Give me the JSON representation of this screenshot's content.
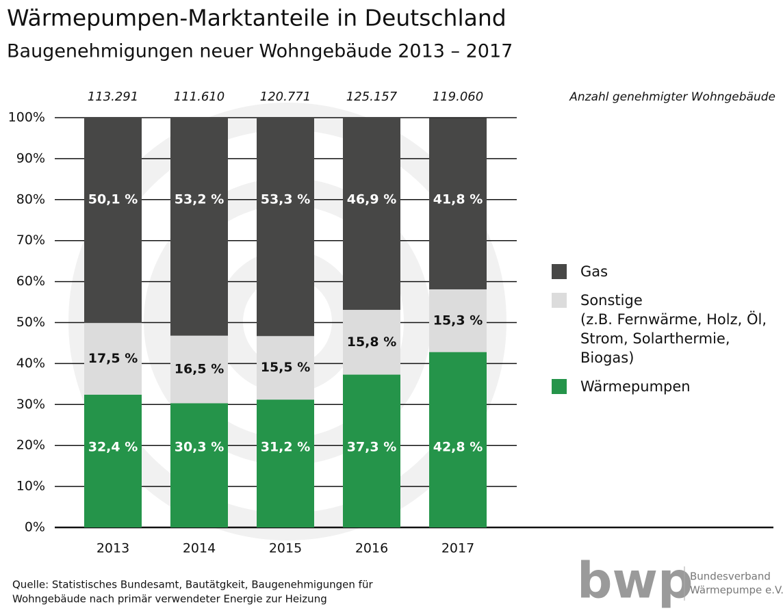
{
  "chart_data": {
    "type": "stacked_bar",
    "title": "Wärmepumpen-Marktanteile in Deutschland",
    "subtitle": "Baugenehmigungen neuer Wohngebäude 2013 – 2017",
    "categories": [
      "2013",
      "2014",
      "2015",
      "2016",
      "2017"
    ],
    "series": [
      {
        "name": "Wärmepumpen",
        "color": "#25944a",
        "values": [
          32.4,
          30.3,
          31.2,
          37.3,
          42.8
        ],
        "value_labels": [
          "32,4 %",
          "30,3 %",
          "31,2 %",
          "37,3 %",
          "42,8 %"
        ]
      },
      {
        "name": "Sonstige",
        "description": "(z.B. Fernwärme, Holz, Öl, Strom, Solarthermie, Biogas)",
        "color": "#dcdcdc",
        "values": [
          17.5,
          16.5,
          15.5,
          15.8,
          15.3
        ],
        "value_labels": [
          "17,5 %",
          "16,5 %",
          "15,5 %",
          "15,8 %",
          "15,3 %"
        ]
      },
      {
        "name": "Gas",
        "color": "#474746",
        "values": [
          50.1,
          53.2,
          53.3,
          46.9,
          41.8
        ],
        "value_labels": [
          "50,1 %",
          "53,2 %",
          "53,3 %",
          "46,9 %",
          "41,8 %"
        ]
      }
    ],
    "counts_label": "Anzahl genehmigter Wohngebäude",
    "counts": [
      113291,
      111610,
      120771,
      125157,
      119060
    ],
    "count_labels": [
      "113.291",
      "111.610",
      "120.771",
      "125.157",
      "119.060"
    ],
    "ylim": [
      0,
      100
    ],
    "yticks": [
      {
        "value": 0,
        "label": "0%"
      },
      {
        "value": 10,
        "label": "10%"
      },
      {
        "value": 20,
        "label": "20%"
      },
      {
        "value": 30,
        "label": "30%"
      },
      {
        "value": 40,
        "label": "40%"
      },
      {
        "value": 50,
        "label": "50%"
      },
      {
        "value": 60,
        "label": "60%"
      },
      {
        "value": 70,
        "label": "70%"
      },
      {
        "value": 80,
        "label": "80%"
      },
      {
        "value": 90,
        "label": "90%"
      },
      {
        "value": 100,
        "label": "100%"
      }
    ],
    "grid": true
  },
  "source": [
    "Quelle: Statistisches Bundesamt, Bautätgkeit, Baugenehmigungen für",
    "Wohngebäude nach primär verwendeter Energie zur Heizung"
  ],
  "logo": {
    "mark": "bwp",
    "lines": [
      "Bundesverband",
      "Wärmepumpe e.V."
    ]
  }
}
